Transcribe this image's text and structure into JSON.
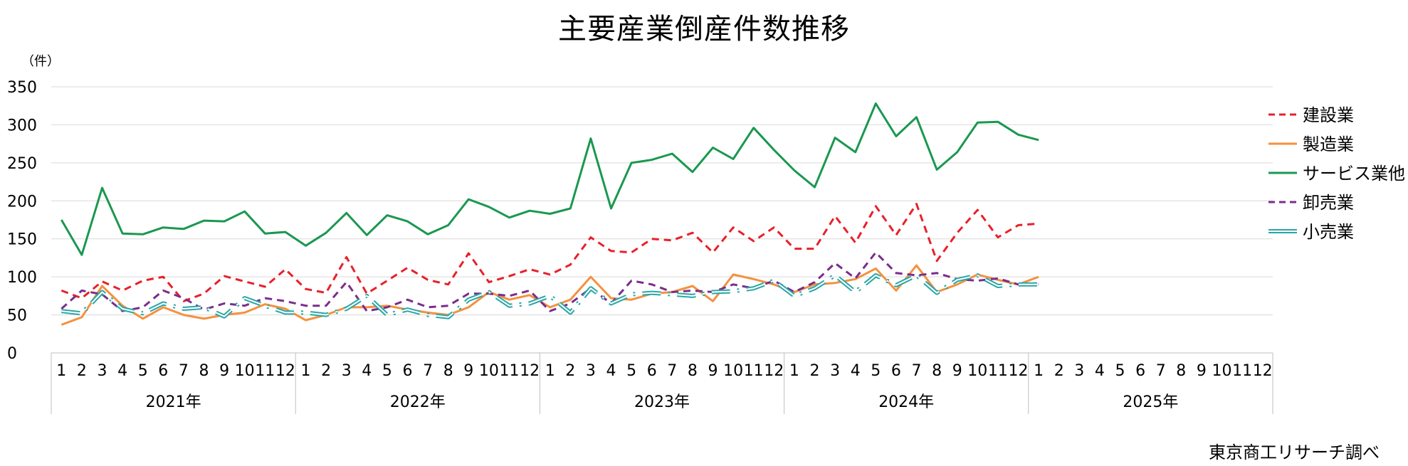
{
  "chart_data": {
    "type": "line",
    "title": "主要産業倒産件数推移",
    "unit": "（件）",
    "source": "東京商工リサーチ調べ",
    "ylim": [
      0,
      350
    ],
    "yticks": [
      0,
      50,
      100,
      150,
      200,
      250,
      300,
      350
    ],
    "grid": true,
    "legend_position": "right",
    "year_groups": [
      "2021年",
      "2022年",
      "2023年",
      "2024年",
      "2025年"
    ],
    "months": [
      "1",
      "2",
      "3",
      "4",
      "5",
      "6",
      "7",
      "8",
      "9",
      "10",
      "11",
      "12"
    ],
    "series": [
      {
        "name": "建設業",
        "color": "#E8202A",
        "style": "dashed",
        "values": [
          82,
          72,
          94,
          82,
          95,
          100,
          68,
          78,
          101,
          94,
          87,
          110,
          84,
          79,
          126,
          78,
          95,
          112,
          96,
          90,
          131,
          93,
          101,
          110,
          103,
          116,
          152,
          134,
          132,
          150,
          148,
          158,
          132,
          165,
          147,
          165,
          137,
          137,
          180,
          145,
          193,
          155,
          196,
          121,
          158,
          188,
          152,
          168,
          170
        ]
      },
      {
        "name": "製造業",
        "color": "#F4913E",
        "style": "solid",
        "values": [
          37,
          47,
          88,
          62,
          45,
          60,
          50,
          45,
          50,
          53,
          64,
          58,
          43,
          50,
          60,
          60,
          62,
          57,
          53,
          50,
          60,
          80,
          70,
          76,
          60,
          70,
          100,
          72,
          70,
          78,
          80,
          88,
          68,
          103,
          97,
          90,
          80,
          90,
          92,
          97,
          111,
          82,
          115,
          80,
          90,
          103,
          96,
          90,
          100
        ]
      },
      {
        "name": "サービス業他",
        "color": "#1A9850",
        "style": "solid",
        "values": [
          175,
          129,
          217,
          157,
          156,
          165,
          163,
          174,
          173,
          186,
          157,
          159,
          141,
          158,
          184,
          155,
          181,
          173,
          156,
          168,
          202,
          192,
          178,
          187,
          183,
          190,
          282,
          190,
          250,
          254,
          262,
          238,
          270,
          255,
          296,
          267,
          240,
          218,
          283,
          264,
          328,
          285,
          310,
          241,
          264,
          303,
          304,
          287,
          280
        ]
      },
      {
        "name": "卸売業",
        "color": "#7B2D8B",
        "style": "dashed",
        "values": [
          58,
          82,
          77,
          55,
          60,
          82,
          72,
          57,
          65,
          62,
          72,
          68,
          62,
          62,
          93,
          55,
          60,
          70,
          60,
          62,
          78,
          78,
          75,
          82,
          55,
          65,
          85,
          65,
          95,
          90,
          80,
          82,
          80,
          90,
          85,
          95,
          80,
          93,
          118,
          98,
          132,
          105,
          102,
          105,
          97,
          95,
          98,
          90,
          90
        ]
      },
      {
        "name": "小売業",
        "color": "#2AA6A6",
        "style": "double",
        "values": [
          55,
          52,
          80,
          58,
          52,
          65,
          58,
          60,
          48,
          72,
          62,
          53,
          53,
          50,
          58,
          75,
          50,
          57,
          50,
          47,
          70,
          80,
          62,
          65,
          75,
          53,
          85,
          65,
          77,
          79,
          77,
          75,
          80,
          81,
          85,
          95,
          75,
          85,
          102,
          80,
          102,
          89,
          102,
          79,
          96,
          102,
          88,
          90,
          90
        ]
      }
    ]
  }
}
